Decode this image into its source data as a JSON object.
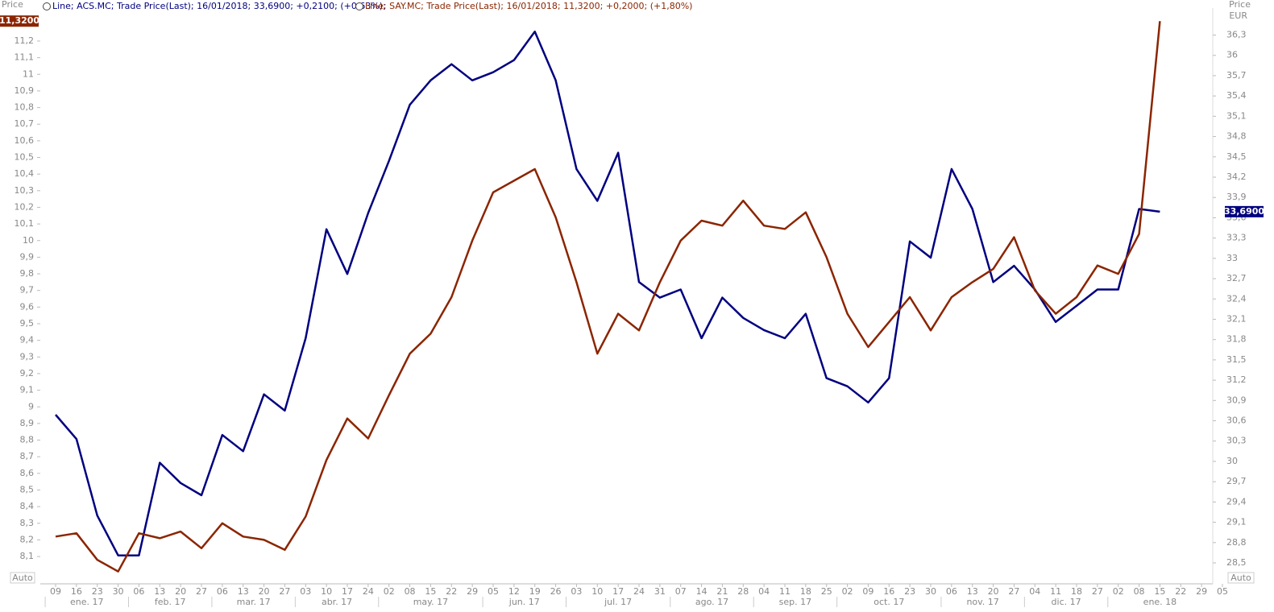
{
  "chart_data": {
    "type": "line",
    "left_axis_title": "Price",
    "right_axis_title": "Price",
    "right_axis_unit": "EUR",
    "left_scale_mode": "Auto",
    "right_scale_mode": "Auto",
    "categories": [
      "09",
      "16",
      "23",
      "30",
      "06",
      "13",
      "20",
      "27",
      "06",
      "13",
      "20",
      "27",
      "03",
      "10",
      "17",
      "24",
      "02",
      "08",
      "15",
      "22",
      "29",
      "05",
      "12",
      "19",
      "26",
      "03",
      "10",
      "17",
      "24",
      "31",
      "07",
      "14",
      "21",
      "28",
      "04",
      "11",
      "18",
      "25",
      "02",
      "09",
      "16",
      "23",
      "30",
      "06",
      "13",
      "20",
      "27",
      "04",
      "11",
      "18",
      "27",
      "02",
      "08",
      "15",
      "22",
      "29",
      "05"
    ],
    "months": [
      "ene. 17",
      "feb. 17",
      "mar. 17",
      "abr. 17",
      "may. 17",
      "jun. 17",
      "jul. 17",
      "ago. 17",
      "sep. 17",
      "oct. 17",
      "nov. 17",
      "dic. 17",
      "ene. 18"
    ],
    "series": [
      {
        "name": "Line; ACS.MC; Trade Price(Last); 16/01/2018; 33,6900; +0,2100; (+0,63%);",
        "color": "#000080",
        "axis": "y2",
        "last_label": "33,6900",
        "values": [
          30.69,
          30.33,
          29.2,
          28.61,
          28.61,
          29.98,
          29.68,
          29.5,
          30.39,
          30.15,
          30.99,
          30.75,
          31.82,
          33.43,
          32.77,
          33.67,
          34.44,
          35.27,
          35.63,
          35.87,
          35.63,
          35.75,
          35.93,
          36.35,
          35.63,
          34.32,
          33.85,
          34.56,
          32.65,
          32.42,
          32.54,
          31.82,
          32.42,
          32.12,
          31.94,
          31.82,
          32.18,
          31.23,
          31.11,
          30.87,
          31.23,
          33.25,
          33.01,
          34.32,
          33.73,
          32.65,
          32.89,
          32.54,
          32.06,
          32.3,
          32.54,
          32.54,
          33.73,
          33.69,
          null,
          null,
          null
        ]
      },
      {
        "name": "Line; SAY.MC; Trade Price(Last); 16/01/2018; 11,3200; +0,2000; (+1,80%)",
        "color": "#8b2500",
        "axis": "y",
        "last_label": "11,3200",
        "values": [
          8.22,
          8.24,
          8.08,
          8.01,
          8.24,
          8.21,
          8.25,
          8.15,
          8.3,
          8.22,
          8.2,
          8.14,
          8.34,
          8.68,
          8.93,
          8.81,
          9.07,
          9.32,
          9.44,
          9.66,
          10.0,
          10.29,
          10.36,
          10.43,
          10.14,
          9.75,
          9.32,
          9.56,
          9.46,
          9.75,
          10.0,
          10.12,
          10.09,
          10.24,
          10.09,
          10.07,
          10.17,
          9.9,
          9.56,
          9.36,
          9.51,
          9.66,
          9.46,
          9.66,
          9.75,
          9.83,
          10.02,
          9.7,
          9.56,
          9.66,
          9.85,
          9.8,
          10.04,
          11.32,
          null,
          null,
          null
        ]
      }
    ],
    "ylim": [
      7.96,
      11.35
    ],
    "yticks": [
      {
        "value": 8.1,
        "label": "8,1"
      },
      {
        "value": 8.2,
        "label": "8,2"
      },
      {
        "value": 8.3,
        "label": "8,3"
      },
      {
        "value": 8.4,
        "label": "8,4"
      },
      {
        "value": 8.5,
        "label": "8,5"
      },
      {
        "value": 8.6,
        "label": "8,6"
      },
      {
        "value": 8.7,
        "label": "8,7"
      },
      {
        "value": 8.8,
        "label": "8,8"
      },
      {
        "value": 8.9,
        "label": "8,9"
      },
      9,
      {
        "value": 9.1,
        "label": "9,1"
      },
      {
        "value": 9.2,
        "label": "9,2"
      },
      {
        "value": 9.3,
        "label": "9,3"
      },
      {
        "value": 9.4,
        "label": "9,4"
      },
      {
        "value": 9.5,
        "label": "9,5"
      },
      {
        "value": 9.6,
        "label": "9,6"
      },
      {
        "value": 9.7,
        "label": "9,7"
      },
      {
        "value": 9.8,
        "label": "9,8"
      },
      {
        "value": 9.9,
        "label": "9,9"
      },
      10,
      {
        "value": 10.1,
        "label": "10,1"
      },
      {
        "value": 10.2,
        "label": "10,2"
      },
      {
        "value": 10.3,
        "label": "10,3"
      },
      {
        "value": 10.4,
        "label": "10,4"
      },
      {
        "value": 10.5,
        "label": "10,5"
      },
      {
        "value": 10.6,
        "label": "10,6"
      },
      {
        "value": 10.7,
        "label": "10,7"
      },
      {
        "value": 10.8,
        "label": "10,8"
      },
      {
        "value": 10.9,
        "label": "10,9"
      },
      11,
      {
        "value": 11.1,
        "label": "11,1"
      },
      {
        "value": 11.2,
        "label": "11,2"
      }
    ],
    "y2lim": [
      28.25,
      36.58
    ],
    "y2ticks": [
      {
        "value": 28.5,
        "label": "28,5"
      },
      {
        "value": 28.8,
        "label": "28,8"
      },
      {
        "value": 29.1,
        "label": "29,1"
      },
      {
        "value": 29.4,
        "label": "29,4"
      },
      {
        "value": 29.7,
        "label": "29,7"
      },
      30,
      {
        "value": 30.3,
        "label": "30,3"
      },
      {
        "value": 30.6,
        "label": "30,6"
      },
      {
        "value": 30.9,
        "label": "30,9"
      },
      {
        "value": 31.2,
        "label": "31,2"
      },
      {
        "value": 31.5,
        "label": "31,5"
      },
      {
        "value": 31.8,
        "label": "31,8"
      },
      {
        "value": 32.1,
        "label": "32,1"
      },
      {
        "value": 32.4,
        "label": "32,4"
      },
      {
        "value": 32.7,
        "label": "32,7"
      },
      33,
      {
        "value": 33.3,
        "label": "33,3"
      },
      {
        "value": 33.6,
        "label": "33,6"
      },
      {
        "value": 33.9,
        "label": "33,9"
      },
      {
        "value": 34.2,
        "label": "34,2"
      },
      {
        "value": 34.5,
        "label": "34,5"
      },
      {
        "value": 34.8,
        "label": "34,8"
      },
      {
        "value": 35.1,
        "label": "35,1"
      },
      {
        "value": 35.4,
        "label": "35,4"
      },
      {
        "value": 35.7,
        "label": "35,7"
      },
      36,
      {
        "value": 36.3,
        "label": "36,3"
      }
    ],
    "grid": false
  }
}
